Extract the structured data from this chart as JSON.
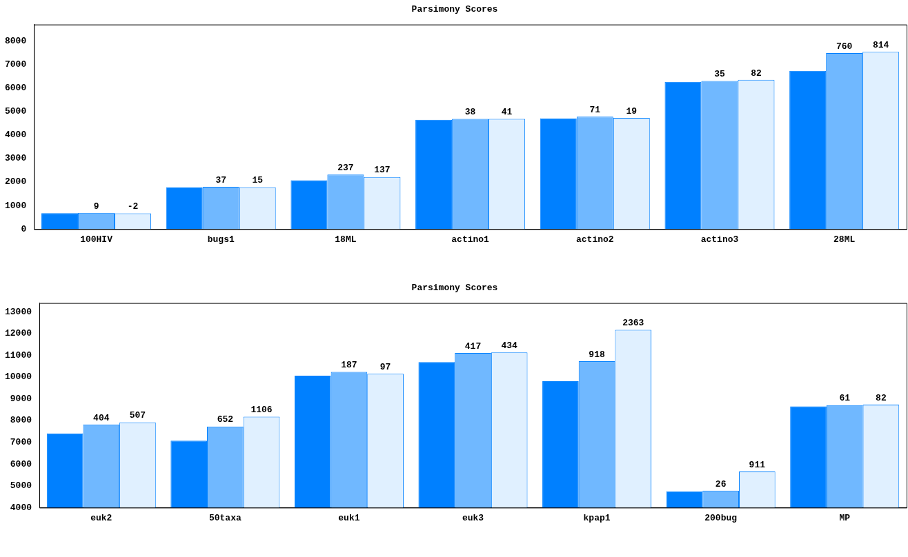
{
  "chart_data": [
    {
      "type": "bar",
      "title": "Parsimony Scores",
      "categories": [
        "100HIV",
        "bugs1",
        "18ML",
        "actino1",
        "actino2",
        "actino3",
        "28ML"
      ],
      "series": [
        {
          "color": "#0080ff",
          "values": [
            680,
            1770,
            2080,
            4650,
            4710,
            6260,
            6730
          ]
        },
        {
          "color": "#70b8ff",
          "values": [
            690,
            1800,
            2320,
            4690,
            4780,
            6300,
            7490
          ]
        },
        {
          "color": "#e0f0ff",
          "values": [
            670,
            1780,
            2220,
            4690,
            4730,
            6350,
            7540
          ]
        }
      ],
      "annotations": [
        "9",
        "-2",
        "37",
        "15",
        "237",
        "137",
        "38",
        "41",
        "71",
        "19",
        "35",
        "82",
        "760",
        "814"
      ],
      "ylim": [
        0,
        8700
      ],
      "yticks": [
        0,
        1000,
        2000,
        3000,
        4000,
        5000,
        6000,
        7000,
        8000
      ],
      "grid": false,
      "legend": false
    },
    {
      "type": "bar",
      "title": "Parsimony Scores",
      "categories": [
        "euk2",
        "50taxa",
        "euk1",
        "euk3",
        "kpap1",
        "200bug",
        "MP"
      ],
      "series": [
        {
          "color": "#0080ff",
          "values": [
            7410,
            7080,
            10060,
            10690,
            9810,
            4750,
            8650
          ]
        },
        {
          "color": "#70b8ff",
          "values": [
            7820,
            7730,
            10240,
            11110,
            10730,
            4780,
            8710
          ]
        },
        {
          "color": "#e0f0ff",
          "values": [
            7920,
            8180,
            10150,
            11130,
            12170,
            5660,
            8730
          ]
        }
      ],
      "annotations": [
        "404",
        "507",
        "652",
        "1106",
        "187",
        "97",
        "417",
        "434",
        "918",
        "2363",
        "26",
        "911",
        "61",
        "82"
      ],
      "ylim": [
        4000,
        13400
      ],
      "yticks": [
        4000,
        5000,
        6000,
        7000,
        8000,
        9000,
        10000,
        11000,
        12000,
        13000
      ],
      "grid": false,
      "legend": false
    }
  ]
}
